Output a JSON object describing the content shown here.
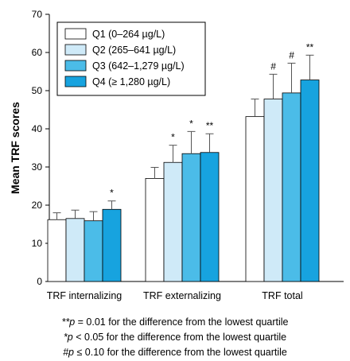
{
  "chart_data": {
    "type": "bar",
    "ylabel": "Mean TRF scores",
    "xlabel": "",
    "ylim": [
      0,
      70
    ],
    "yticks": [
      0,
      10,
      20,
      30,
      40,
      50,
      60,
      70
    ],
    "grid": false,
    "legend_position": "top-left",
    "error_bars": true,
    "categories": [
      "TRF internalizing",
      "TRF externalizing",
      "TRF total"
    ],
    "series": [
      {
        "name": "Q1 (0–264 µg/L)",
        "color": "#ffffff",
        "values": [
          16.2,
          27.0,
          43.2
        ],
        "err_upper": [
          1.8,
          2.9,
          4.6
        ],
        "marks": [
          "",
          "",
          ""
        ]
      },
      {
        "name": "Q2 (265–641 µg/L)",
        "color": "#cfeaf8",
        "values": [
          16.5,
          31.2,
          47.8
        ],
        "err_upper": [
          2.2,
          4.5,
          6.5
        ],
        "marks": [
          "",
          "*",
          "#"
        ]
      },
      {
        "name": "Q3 (642–1,279 µg/L)",
        "color": "#4bbce8",
        "values": [
          15.9,
          33.5,
          49.4
        ],
        "err_upper": [
          2.4,
          5.8,
          7.8
        ],
        "marks": [
          "",
          "*",
          "#"
        ]
      },
      {
        "name": "Q4 (≥ 1,280 µg/L)",
        "color": "#17a3df",
        "values": [
          18.9,
          33.8,
          52.8
        ],
        "err_upper": [
          2.2,
          4.9,
          6.5
        ],
        "marks": [
          "*",
          "**",
          "**"
        ]
      }
    ]
  },
  "footnotes": [
    {
      "symbol": "**",
      "text": "p = 0.01 for the difference from the lowest quartile"
    },
    {
      "symbol": "*",
      "text": "p < 0.05 for the difference from the lowest quartile"
    },
    {
      "symbol": "#",
      "text": "p ≤ 0.10 for the difference from the lowest quartile"
    }
  ]
}
